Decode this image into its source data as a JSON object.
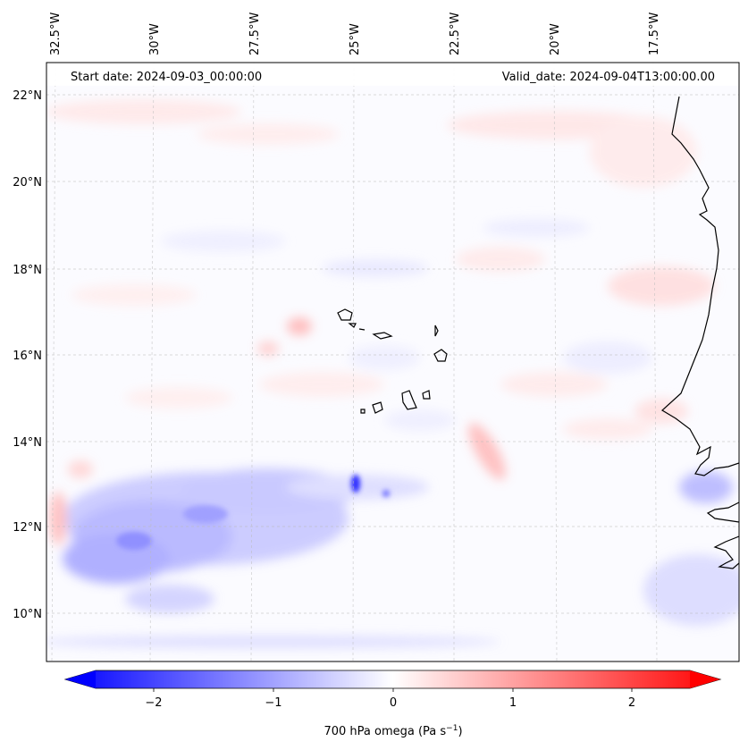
{
  "map": {
    "start_date": "Start date: 2024-09-03_00:00:00",
    "valid_date": "Valid_date: 2024-09-04T13:00:00.00",
    "lon_labels": [
      "32.5°W",
      "30°W",
      "27.5°W",
      "25°W",
      "22.5°W",
      "20°W",
      "17.5°W"
    ],
    "lat_labels": [
      "22°N",
      "20°N",
      "18°N",
      "16°N",
      "14°N",
      "12°N",
      "10°N"
    ],
    "extent": {
      "lon_min": -32.6,
      "lon_max": -15.6,
      "lat_min": 8.8,
      "lat_max": 22.8
    },
    "colors": {
      "negative": "#0000ff",
      "zero": "#ffffff",
      "positive": "#ff0000",
      "coastline": "#000000",
      "grid": "#bbbbbb"
    }
  },
  "colorbar": {
    "label": "700 hPa omega (Pa s",
    "label_sup": "−1",
    "label_end": ")",
    "ticks": [
      "−2",
      "−1",
      "0",
      "1",
      "2"
    ],
    "tick_values": [
      -2,
      -1,
      0,
      1,
      2
    ],
    "range": [
      -2.5,
      2.5
    ],
    "extend": "both"
  }
}
